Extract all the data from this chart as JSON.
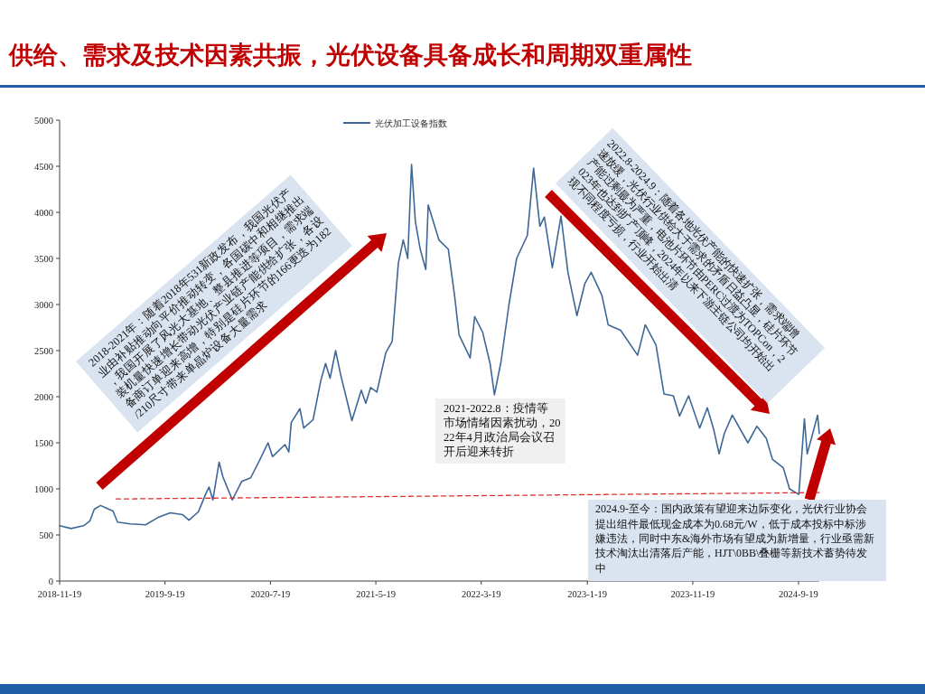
{
  "chart_data": {
    "type": "line",
    "title": "供给、需求及技术因素共振，光伏设备具备成长和周期双重属性",
    "legend": "top",
    "xlim": [
      "2018-11-19",
      "2024-11-18"
    ],
    "xticks": [
      {
        "value": "2018-11-19",
        "label": "2018-11-19"
      },
      {
        "value": "2019-09-19",
        "label": "2019-9-19"
      },
      {
        "value": "2020-07-19",
        "label": "2020-7-19"
      },
      {
        "value": "2021-05-19",
        "label": "2021-5-19"
      },
      {
        "value": "2022-03-19",
        "label": "2022-3-19"
      },
      {
        "value": "2023-01-19",
        "label": "2023-1-19"
      },
      {
        "value": "2023-11-19",
        "label": "2023-11-19"
      },
      {
        "value": "2024-09-19",
        "label": "2024-9-19"
      }
    ],
    "ylim": [
      0,
      5000
    ],
    "yticks": [
      0,
      500,
      1000,
      1500,
      2000,
      2500,
      3000,
      3500,
      4000,
      4500,
      5000
    ],
    "series": [
      {
        "name": "光伏加工设备指数",
        "color": "#3d6796",
        "x": [
          "2018-11-19",
          "2018-12-22",
          "2019-01-27",
          "2019-02-14",
          "2019-02-27",
          "2019-03-17",
          "2019-04-04",
          "2019-04-22",
          "2019-05-05",
          "2019-06-10",
          "2019-07-25",
          "2019-08-30",
          "2019-10-04",
          "2019-11-09",
          "2019-11-27",
          "2019-12-24",
          "2020-01-15",
          "2020-01-24",
          "2020-02-04",
          "2020-02-22",
          "2020-03-04",
          "2020-03-31",
          "2020-04-27",
          "2020-05-23",
          "2020-06-19",
          "2020-07-12",
          "2020-07-25",
          "2020-08-30",
          "2020-09-10",
          "2020-09-17",
          "2020-10-12",
          "2020-10-23",
          "2020-11-19",
          "2020-12-11",
          "2020-12-25",
          "2021-01-07",
          "2021-01-23",
          "2021-02-07",
          "2021-03-11",
          "2021-04-07",
          "2021-04-20",
          "2021-05-04",
          "2021-05-22",
          "2021-06-17",
          "2021-07-05",
          "2021-07-23",
          "2021-08-06",
          "2021-08-19",
          "2021-08-30",
          "2021-09-10",
          "2021-09-24",
          "2021-10-10",
          "2021-10-17",
          "2021-11-17",
          "2021-12-14",
          "2022-01-01",
          "2022-01-14",
          "2022-02-15",
          "2022-02-28",
          "2022-03-23",
          "2022-04-14",
          "2022-04-26",
          "2022-05-15",
          "2022-06-07",
          "2022-06-29",
          "2022-07-30",
          "2022-08-17",
          "2022-09-04",
          "2022-09-17",
          "2022-10-10",
          "2022-11-04",
          "2022-11-24",
          "2022-12-20",
          "2023-01-12",
          "2023-01-30",
          "2023-03-02",
          "2023-03-20",
          "2023-04-25",
          "2023-06-13",
          "2023-07-05",
          "2023-08-05",
          "2023-08-28",
          "2023-09-24",
          "2023-10-12",
          "2023-11-07",
          "2023-12-09",
          "2023-12-31",
          "2024-01-18",
          "2024-02-03",
          "2024-02-18",
          "2024-03-12",
          "2024-04-26",
          "2024-05-22",
          "2024-06-18",
          "2024-07-06",
          "2024-08-06",
          "2024-08-24",
          "2024-09-20",
          "2024-10-06",
          "2024-10-14",
          "2024-10-30",
          "2024-11-13",
          "2024-11-18"
        ],
        "values": [
          600,
          570,
          600,
          650,
          780,
          820,
          790,
          760,
          640,
          620,
          610,
          690,
          740,
          720,
          660,
          750,
          950,
          1020,
          880,
          1290,
          1130,
          880,
          1080,
          1120,
          1320,
          1500,
          1350,
          1480,
          1400,
          1720,
          1870,
          1660,
          1750,
          2170,
          2360,
          2200,
          2500,
          2230,
          1740,
          2070,
          1930,
          2100,
          2050,
          2480,
          2600,
          3450,
          3700,
          3500,
          4520,
          3900,
          3600,
          3380,
          4080,
          3700,
          3600,
          3100,
          2670,
          2420,
          2870,
          2700,
          2350,
          2020,
          2380,
          3000,
          3500,
          3750,
          4480,
          3850,
          3950,
          3400,
          3960,
          3350,
          2880,
          3230,
          3350,
          3100,
          2780,
          2720,
          2450,
          2780,
          2560,
          2030,
          2010,
          1790,
          2010,
          1660,
          1880,
          1650,
          1380,
          1600,
          1800,
          1500,
          1680,
          1550,
          1320,
          1230,
          1000,
          940,
          1760,
          1380,
          1600,
          1800,
          1600
        ]
      },
      {
        "type": "line",
        "color": "#e03030",
        "line_style": "dashed",
        "x": [
          "2019-05-01",
          "2024-11-18"
        ],
        "values": [
          890,
          960
        ]
      }
    ],
    "annotations": [
      "2018-2021年：随着2018年531新政发布，我国光伏产业由补贴推动向平价推动转变，各国碳中和相继推出，我国开展了风光大基地、整县推进等项目，需求端装机量快速增长带动光伏产业链产能供给扩张，各设备商订单迎来高增，特别是硅片环节的166更迭为182/210尺寸带来单晶炉设备大量需求",
      "2022.8-2024.9：随着各地光伏产能的快速扩张，需求端增速放缓，光伏行业供给大于需求的矛盾日益凸显，硅片环节产能过剩最为严重，电池片环节由PERC过渡为TOPCon，2023年也达到扩产顶峰，2024年以来下游主链公司均开始出现不同程度亏损，行业开始出清",
      "2021-2022.8：疫情等市场情绪因素扰动，2022年4月政治局会议召开后迎来转折",
      "2024.9-至今：国内政策有望迎来边际变化，光伏行业协会提出组件最低现金成本为0.68元/W，低于成本投标中标涉嫌违法，同时中东&海外市场有望成为新增量，行业亟需新技术淘汰出清落后产能，HJT\\0BB\\叠栅等新技术蓄势待发中"
    ]
  }
}
